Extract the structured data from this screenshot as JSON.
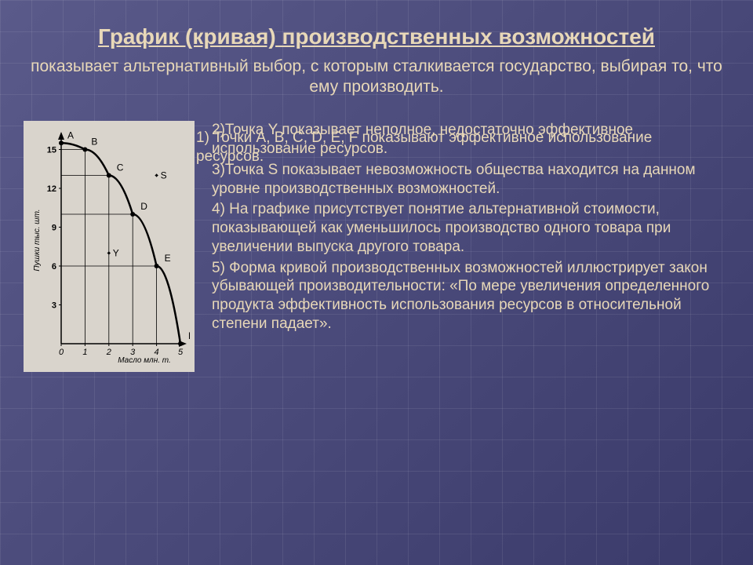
{
  "title": "График (кривая) производственных возможностей",
  "subtitle": "показывает альтернативный выбор, с которым сталкивается государство, выбирая то, что ему производить.",
  "overlap": "1) Точки A, B, C, D, E, F  показывают эффективное использование ресурсов.",
  "points": {
    "p2": "2)Точка Y показывает неполное, недостаточно эффективное использование ресурсов.",
    "p3": "3)Точка S показывает невозможность общества находится на данном уровне производственных возможностей.",
    "p4": "4) На графике присутствует понятие альтернативной стоимости, показывающей как уменьшилось производство одного товара при увеличении  выпуска другого товара.",
    "p5": "5) Форма кривой производственных возможностей иллюстрирует закон убывающей производительности: «По мере увеличения определенного продукта эффективность использования ресурсов в относительной степени падает»."
  },
  "chart": {
    "type": "line",
    "title_fontsize": 28,
    "text_color": "#e8d8b8",
    "background_color": "#5a5a8a",
    "chart_bg": "#d9d4cc",
    "axis_color": "#000000",
    "ylabel": "Пушки тыс. шт.",
    "xlabel": "Масло млн. т.",
    "x_ticks": [
      0,
      1,
      2,
      3,
      4,
      5
    ],
    "y_ticks": [
      3,
      6,
      9,
      12,
      15
    ],
    "curve_points": [
      {
        "label": "A",
        "x": 0,
        "y": 15.5
      },
      {
        "label": "B",
        "x": 1,
        "y": 15
      },
      {
        "label": "C",
        "x": 2,
        "y": 13
      },
      {
        "label": "D",
        "x": 3,
        "y": 10
      },
      {
        "label": "E",
        "x": 4,
        "y": 6
      },
      {
        "label": "F",
        "x": 5,
        "y": 0
      }
    ],
    "extra_points": [
      {
        "label": "Y",
        "x": 2,
        "y": 7
      },
      {
        "label": "S",
        "x": 4,
        "y": 13
      }
    ],
    "curve_color": "#000000",
    "curve_width": 2.5,
    "grid_visible_segments": true,
    "marker_size": 3
  }
}
